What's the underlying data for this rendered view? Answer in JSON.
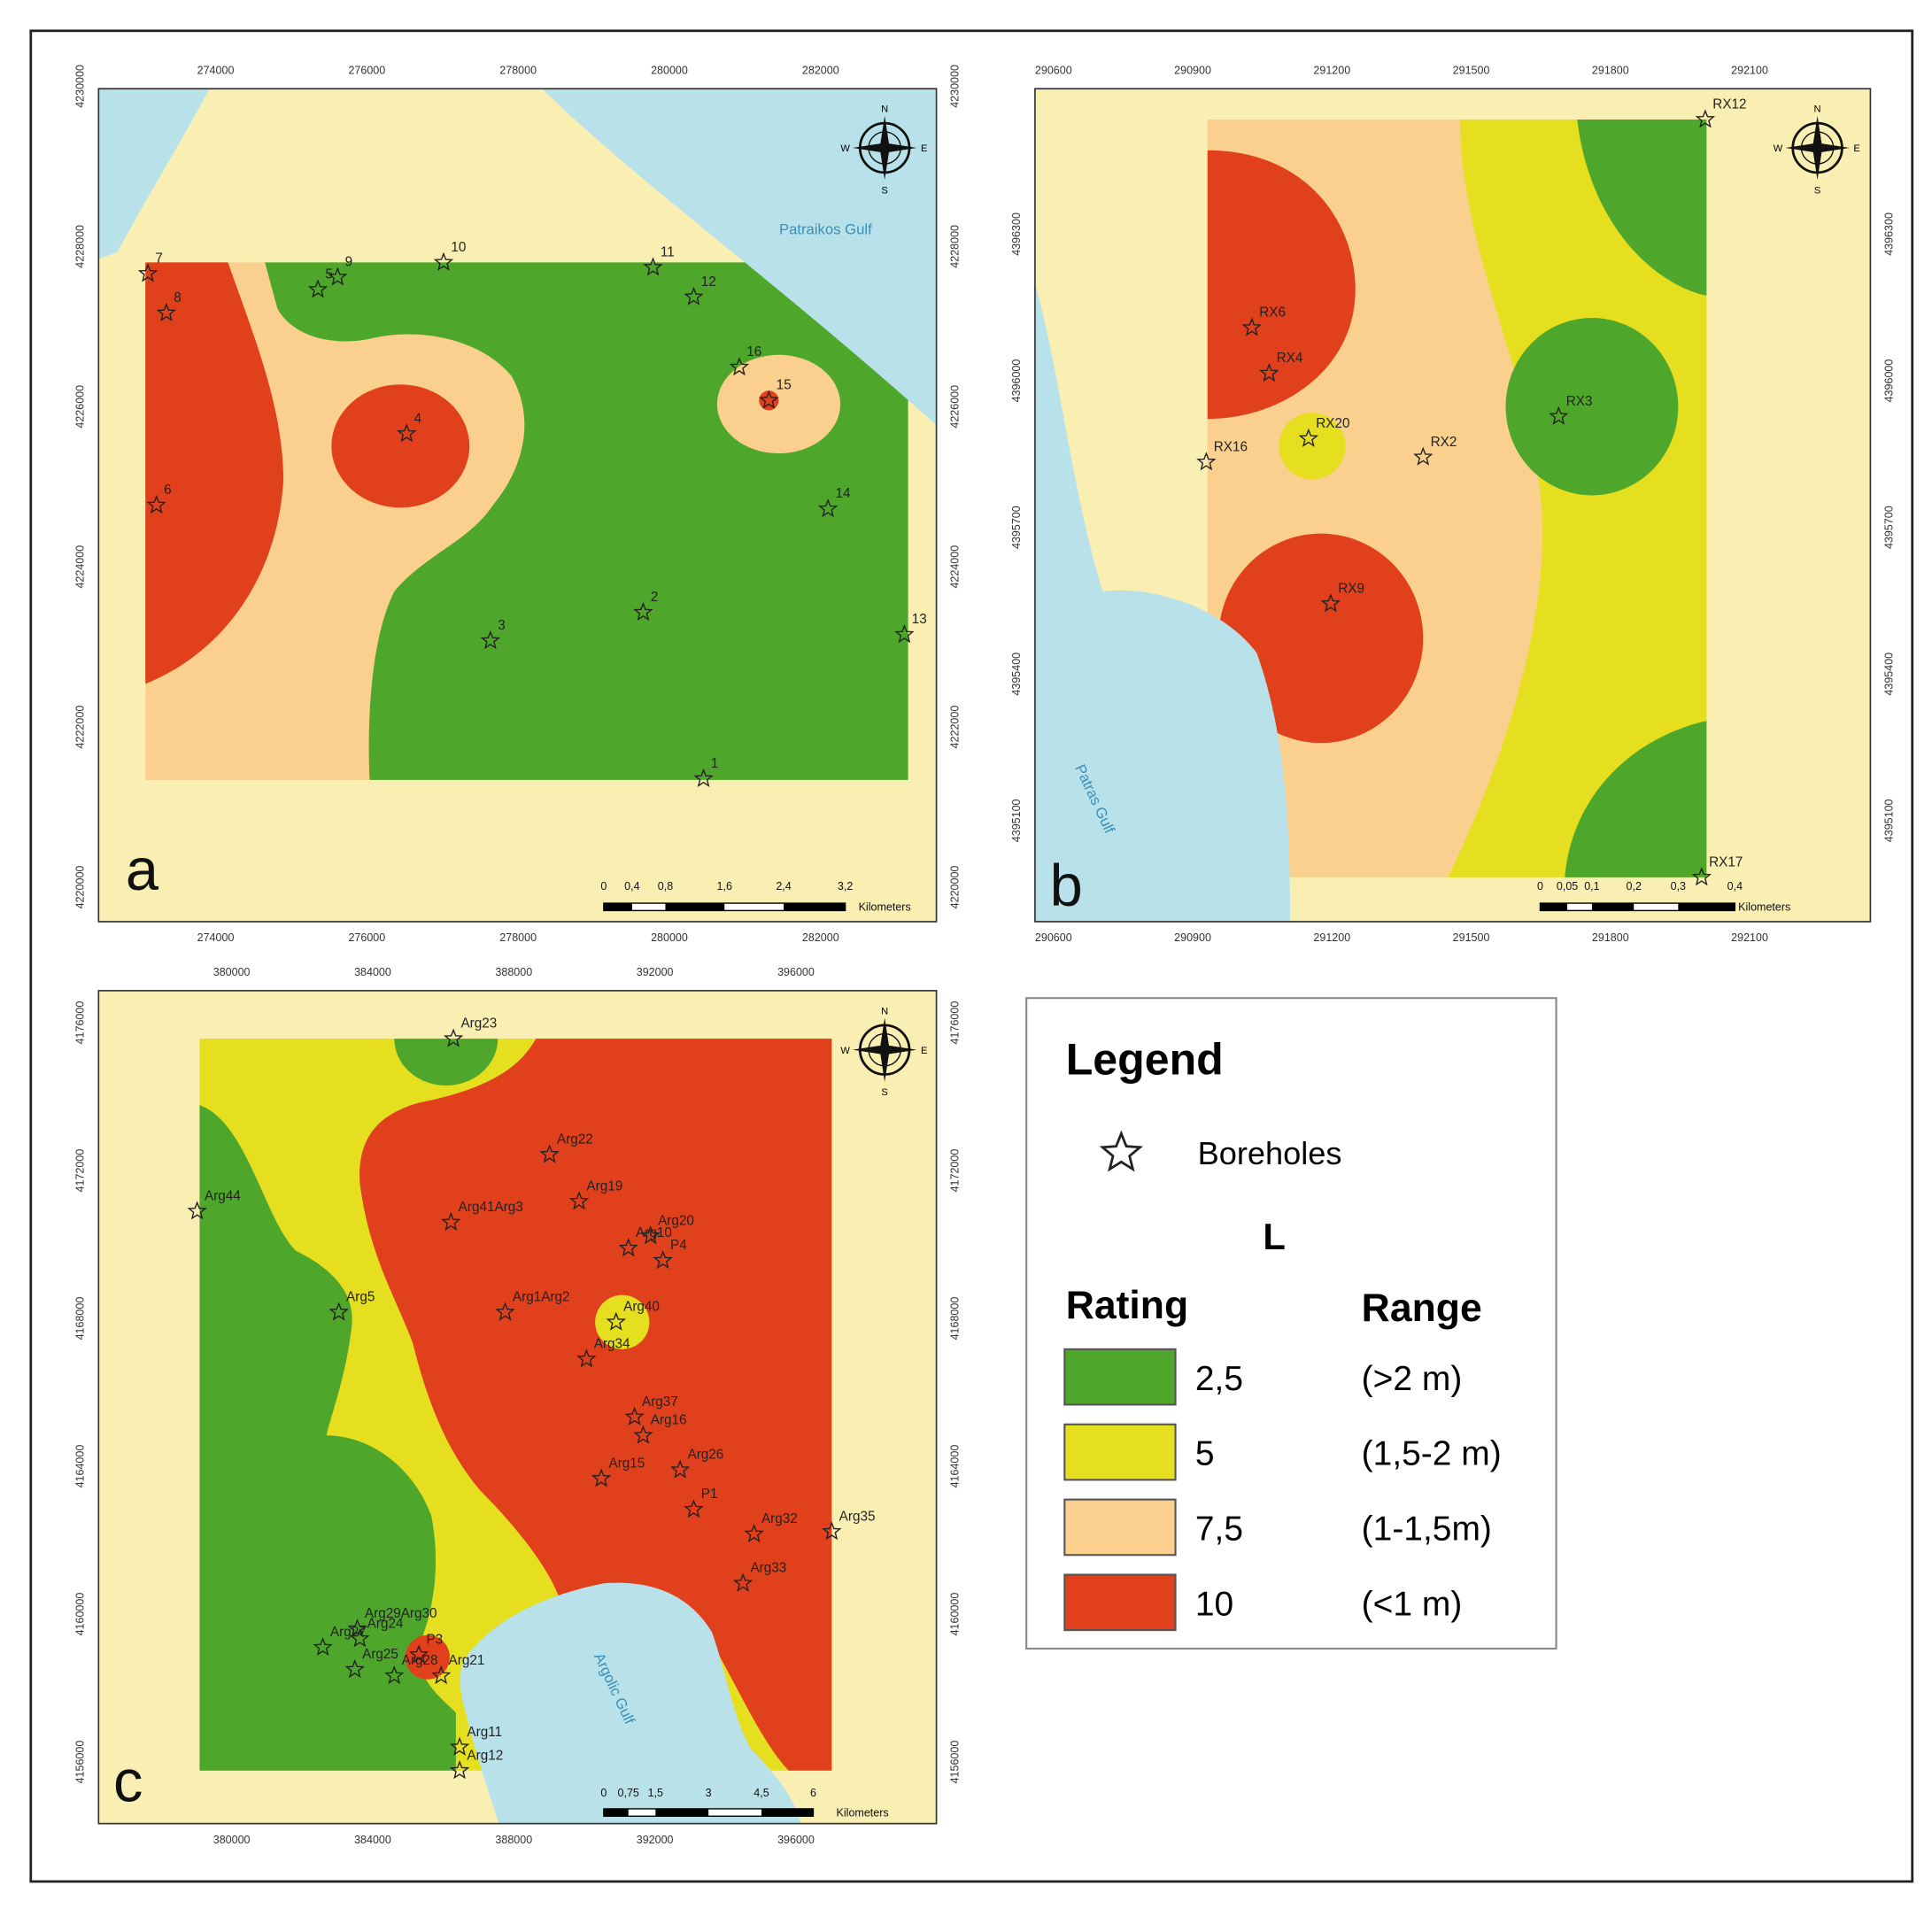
{
  "figure": {
    "panels": [
      {
        "letter": "a",
        "x_ticks": [
          274000,
          276000,
          278000,
          280000,
          282000
        ],
        "y_ticks": [
          4230000,
          4228000,
          4226000,
          4224000,
          4222000,
          4220000
        ],
        "sea_label": "Patraikos Gulf",
        "boreholes": [
          "7",
          "8",
          "5",
          "9",
          "10",
          "11",
          "12",
          "16",
          "15",
          "4",
          "6",
          "14",
          "3",
          "2",
          "13",
          "1"
        ],
        "scale": {
          "ticks": [
            "0",
            "0,4",
            "0,8",
            "1,6",
            "2,4",
            "3,2"
          ],
          "unit": "Kilometers"
        }
      },
      {
        "letter": "b",
        "x_ticks": [
          290600,
          290900,
          291200,
          291500,
          291800,
          292100
        ],
        "y_ticks": [
          4396300,
          4396000,
          4395700,
          4395400,
          4395100
        ],
        "sea_label": "Patras Gulf",
        "boreholes": [
          "RX12",
          "RX6",
          "RX4",
          "RX20",
          "RX16",
          "RX2",
          "RX3",
          "RX9",
          "RX17"
        ],
        "scale": {
          "ticks": [
            "0",
            "0,05",
            "0,1",
            "0,2",
            "0,3",
            "0,4"
          ],
          "unit": "Kilometers"
        }
      },
      {
        "letter": "c",
        "x_ticks": [
          380000,
          384000,
          388000,
          392000,
          396000
        ],
        "y_ticks": [
          4176000,
          4172000,
          4168000,
          4164000,
          4160000,
          4156000
        ],
        "sea_label": "Argolic Gulf",
        "boreholes": [
          "Arg23",
          "Arg22",
          "Arg44",
          "Arg19",
          "Arg41Arg3",
          "Arg10",
          "Arg20",
          "P4",
          "Arg1Arg2",
          "Arg5",
          "Arg40",
          "Arg34",
          "Arg37",
          "Arg16",
          "Arg26",
          "Arg15",
          "P1",
          "Arg32",
          "Arg35",
          "Arg33",
          "Arg29Arg30",
          "Arg27",
          "Arg24",
          "Arg25",
          "Arg28",
          "P3",
          "Arg21",
          "Arg11",
          "Arg12"
        ],
        "scale": {
          "ticks": [
            "0",
            "0,75",
            "1,5",
            "3",
            "4,5",
            "6"
          ],
          "unit": "Kilometers"
        }
      }
    ],
    "compass": [
      "N",
      "E",
      "S",
      "W"
    ],
    "legend": {
      "title": "Legend",
      "symbol_label": "Boreholes",
      "parameter": "L",
      "rating_header": "Rating",
      "range_header": "Range",
      "classes": [
        {
          "rating": "2,5",
          "range": "(>2 m)",
          "color": "#4ea72a"
        },
        {
          "rating": "5",
          "range": "(1,5-2 m)",
          "color": "#e5df1f"
        },
        {
          "rating": "7,5",
          "range": "(1-1,5m)",
          "color": "#fbd08e"
        },
        {
          "rating": "10",
          "range": "(<1 m)",
          "color": "#e0401c"
        }
      ]
    }
  }
}
